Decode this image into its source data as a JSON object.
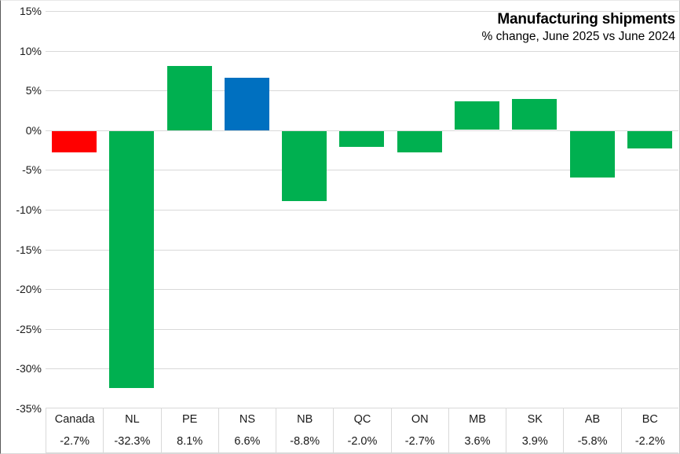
{
  "chart_data": {
    "type": "bar",
    "title": "Manufacturing shipments",
    "subtitle": "% change, June 2025 vs June 2024",
    "categories": [
      "Canada",
      "NL",
      "PE",
      "NS",
      "NB",
      "QC",
      "ON",
      "MB",
      "SK",
      "AB",
      "BC"
    ],
    "values": [
      -2.7,
      -32.3,
      8.1,
      6.6,
      -8.8,
      -2.0,
      -2.7,
      3.6,
      3.9,
      -5.8,
      -2.2
    ],
    "value_labels": [
      "-2.7%",
      "-32.3%",
      "8.1%",
      "6.6%",
      "-8.8%",
      "-2.0%",
      "-2.7%",
      "3.6%",
      "3.9%",
      "-5.8%",
      "-2.2%"
    ],
    "bar_colors": [
      "#FF0000",
      "#00B050",
      "#00B050",
      "#0070C0",
      "#00B050",
      "#00B050",
      "#00B050",
      "#00B050",
      "#00B050",
      "#00B050",
      "#00B050"
    ],
    "palette": {
      "canada_red": "#FF0000",
      "province_green": "#00B050",
      "ns_blue": "#0070C0"
    },
    "ylim": [
      -35,
      15
    ],
    "yticks": [
      15,
      10,
      5,
      0,
      -5,
      -10,
      -15,
      -20,
      -25,
      -30,
      -35
    ],
    "ytick_labels": [
      "15%",
      "10%",
      "5%",
      "0%",
      "-5%",
      "-10%",
      "-15%",
      "-20%",
      "-25%",
      "-30%",
      "-35%"
    ],
    "grid": true,
    "gridline_color": "#D9D9D9",
    "legend": "none",
    "xlabel": "",
    "ylabel": ""
  }
}
